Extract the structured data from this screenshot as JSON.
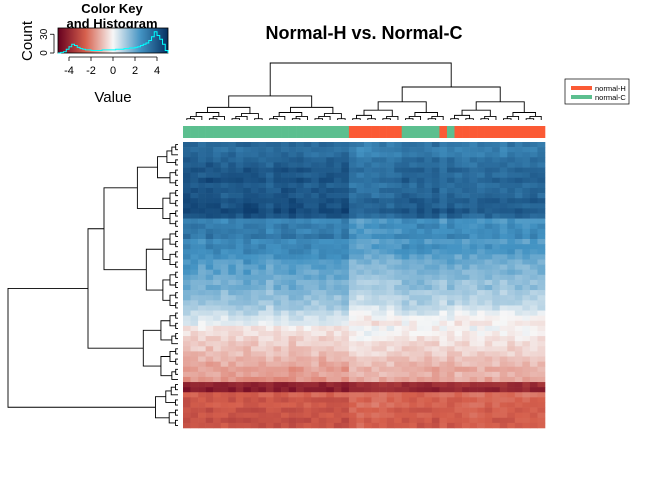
{
  "chart_data": {
    "type": "heatmap",
    "title": "Normal-H vs. Normal-C",
    "color_key": {
      "title_line1": "Color Key",
      "title_line2": "and Histogram",
      "xlabel": "Value",
      "ylabel": "Count",
      "x_ticks": [
        "-4",
        "-2",
        "0",
        "2",
        "4"
      ],
      "x_tick_values": [
        -4,
        -2,
        0,
        2,
        4
      ],
      "x_range": [
        -5,
        5
      ],
      "y_ticks": [
        "0",
        "30"
      ],
      "y_tick_values": [
        0,
        30
      ],
      "y_max": 40,
      "histogram_color": "#00ffff",
      "histogram_counts": [
        0,
        1,
        2,
        6,
        10,
        14,
        12,
        9,
        7,
        6,
        5,
        5,
        4,
        4,
        4,
        4,
        5,
        5,
        5,
        5,
        5,
        6,
        6,
        6,
        7,
        7,
        8,
        8,
        9,
        10,
        12,
        14,
        16,
        20,
        26,
        34,
        28,
        22,
        14,
        4
      ]
    },
    "legend": {
      "placement": "top-right",
      "entries": [
        {
          "label": "normal-H",
          "color": "#fb5a35"
        },
        {
          "label": "normal-C",
          "color": "#5cbf8f"
        }
      ]
    },
    "palette": {
      "low": "#67001f",
      "midlow": "#d6604d",
      "mid": "#f7f7f7",
      "midhigh": "#4393c3",
      "high": "#053061"
    },
    "columns": {
      "count": 48,
      "groups": [
        "C",
        "C",
        "C",
        "C",
        "C",
        "C",
        "C",
        "C",
        "C",
        "C",
        "C",
        "C",
        "C",
        "C",
        "C",
        "C",
        "C",
        "C",
        "C",
        "C",
        "C",
        "C",
        "H",
        "H",
        "H",
        "H",
        "H",
        "H",
        "H",
        "C",
        "C",
        "C",
        "C",
        "C",
        "H",
        "C",
        "H",
        "H",
        "H",
        "H",
        "H",
        "H",
        "H",
        "H",
        "H",
        "H",
        "H",
        "H"
      ],
      "column_offsets": [
        0.2,
        0.1,
        0.0,
        0.15,
        0.05,
        -0.05,
        0.1,
        0.0,
        0.2,
        0.1,
        0.05,
        -0.1,
        0.0,
        0.1,
        0.15,
        0.05,
        0.0,
        -0.05,
        0.1,
        0.05,
        0.0,
        0.1,
        -0.5,
        -0.6,
        -0.55,
        -0.5,
        -0.45,
        -0.5,
        -0.4,
        -0.2,
        -0.25,
        -0.15,
        -0.3,
        -0.2,
        -0.45,
        -0.2,
        -0.4,
        -0.35,
        -0.45,
        -0.4,
        -0.3,
        -0.35,
        -0.4,
        -0.3,
        -0.35,
        -0.4,
        -0.3,
        -0.35
      ]
    },
    "rows": {
      "count": 56,
      "base_values": [
        3.2,
        3.0,
        3.1,
        3.3,
        3.4,
        3.6,
        3.5,
        3.7,
        3.4,
        3.6,
        3.5,
        3.8,
        3.7,
        3.9,
        3.6,
        2.5,
        2.7,
        2.6,
        2.8,
        2.3,
        2.5,
        2.4,
        2.2,
        2.0,
        1.9,
        1.8,
        1.7,
        1.5,
        1.6,
        1.3,
        1.2,
        1.1,
        0.9,
        0.6,
        0.4,
        0.2,
        -0.2,
        -0.3,
        -0.5,
        -0.6,
        -0.7,
        -0.8,
        -1.0,
        -1.1,
        -1.3,
        -1.2,
        -1.4,
        -3.6,
        -3.8,
        -2.2,
        -2.4,
        -2.3,
        -2.5,
        -2.4,
        -2.6,
        -2.5
      ]
    },
    "row_dendrogram": "hierarchical clustering",
    "column_dendrogram": "hierarchical clustering"
  }
}
